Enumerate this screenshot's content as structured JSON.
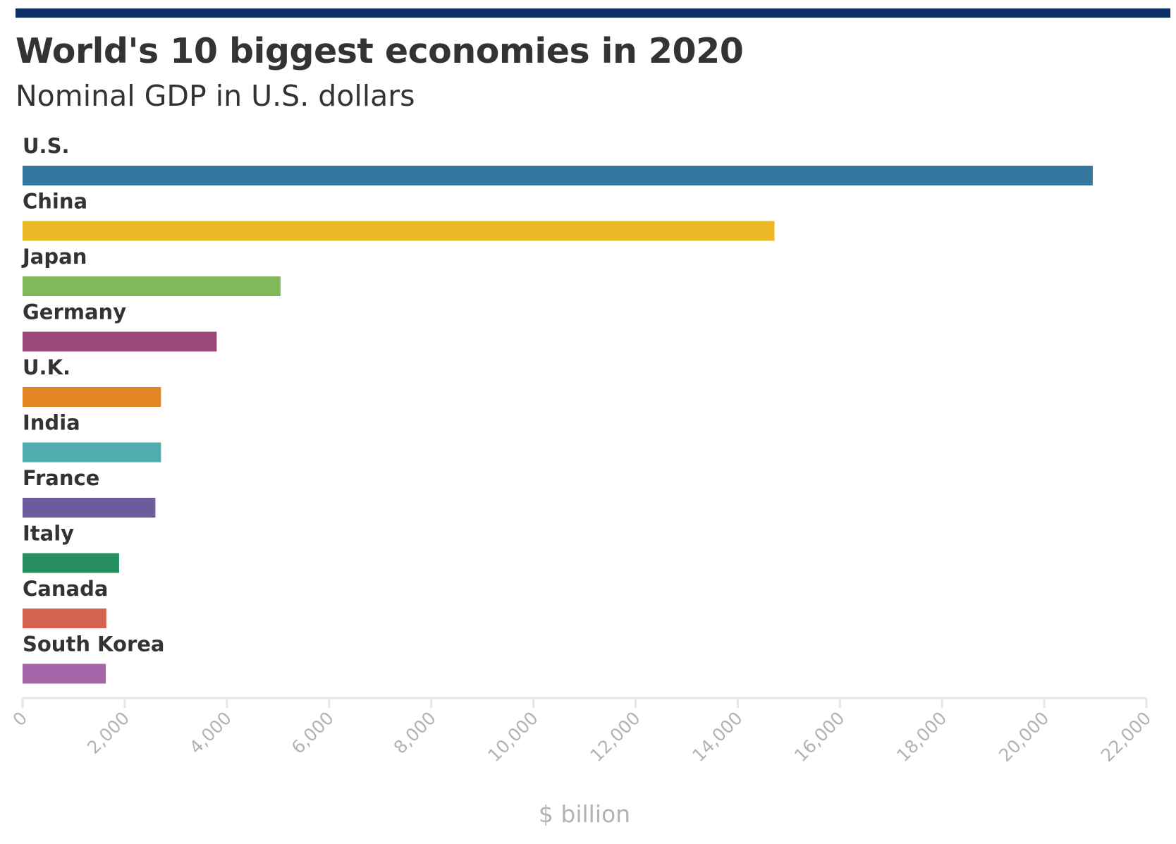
{
  "header": {
    "title": "World's 10 biggest economies in 2020",
    "subtitle": "Nominal GDP in U.S. dollars",
    "rule_color": "#0b2e67"
  },
  "chart_data": {
    "type": "bar",
    "orientation": "horizontal",
    "title": "World's 10 biggest economies in 2020",
    "subtitle": "Nominal GDP in U.S. dollars",
    "categories": [
      "U.S.",
      "China",
      "Japan",
      "Germany",
      "U.K.",
      "India",
      "France",
      "Italy",
      "Canada",
      "South Korea"
    ],
    "values": [
      20950,
      14720,
      5050,
      3800,
      2710,
      2710,
      2600,
      1890,
      1640,
      1630
    ],
    "colors": [
      "#34779f",
      "#ebb826",
      "#81b95a",
      "#9b4878",
      "#e38724",
      "#4faead",
      "#6e5a9f",
      "#278e61",
      "#d4644f",
      "#a665a8"
    ],
    "xlabel": "$ billion",
    "xlim": [
      0,
      22000
    ],
    "xticks": [
      0,
      2000,
      4000,
      6000,
      8000,
      10000,
      12000,
      14000,
      16000,
      18000,
      20000,
      22000
    ],
    "xtick_labels": [
      "0",
      "2,000",
      "4,000",
      "6,000",
      "8,000",
      "10,000",
      "12,000",
      "14,000",
      "16,000",
      "18,000",
      "20,000",
      "22,000"
    ],
    "grid": false,
    "legend": "none"
  }
}
